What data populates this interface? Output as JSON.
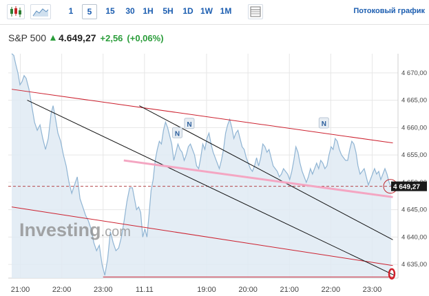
{
  "toolbar": {
    "timeframes": [
      "1",
      "5",
      "15",
      "30",
      "1H",
      "5H",
      "1D",
      "1W",
      "1M"
    ],
    "active_timeframe": "5",
    "streaming_label": "Потоковый график"
  },
  "quote": {
    "name": "S&P 500",
    "price": "4.649,27",
    "change": "+2,56",
    "change_pct": "(+0,06%)",
    "up_color": "#2a9d3a"
  },
  "chart_data": {
    "type": "area",
    "title": "",
    "xlabel": "",
    "ylabel": "",
    "ylim": [
      4632.5,
      4673.5
    ],
    "y_ticks": [
      4635,
      4640,
      4645,
      4650,
      4655,
      4660,
      4665,
      4670
    ],
    "y_tick_labels": [
      "4 635,00",
      "4 640,00",
      "4 645,00",
      "4 650,00",
      "4 655,00",
      "4 660,00",
      "4 665,00",
      "4 670,00"
    ],
    "x_ticks": [
      {
        "label": "21:00",
        "t": 2.5
      },
      {
        "label": "22:00",
        "t": 14.5
      },
      {
        "label": "23:00",
        "t": 26.5
      },
      {
        "label": "11.11",
        "t": 38.5
      },
      {
        "label": "19:00",
        "t": 56.5
      },
      {
        "label": "20:00",
        "t": 68.5
      },
      {
        "label": "21:00",
        "t": 80.5
      },
      {
        "label": "22:00",
        "t": 92.5
      },
      {
        "label": "23:00",
        "t": 104.5
      }
    ],
    "t_range": [
      -1,
      112
    ],
    "series": [
      {
        "values": [
          [
            0,
            4673.5
          ],
          [
            0.6,
            4673.2
          ],
          [
            1.2,
            4671.5
          ],
          [
            1.8,
            4670.0
          ],
          [
            2.4,
            4667.8
          ],
          [
            3.0,
            4668.4
          ],
          [
            3.6,
            4669.5
          ],
          [
            4.2,
            4669.0
          ],
          [
            5.0,
            4667.0
          ],
          [
            5.8,
            4664.0
          ],
          [
            6.6,
            4661.0
          ],
          [
            7.4,
            4659.5
          ],
          [
            8.2,
            4660.5
          ],
          [
            9.0,
            4658.0
          ],
          [
            9.8,
            4656.0
          ],
          [
            10.6,
            4658.0
          ],
          [
            11.4,
            4662.5
          ],
          [
            12.0,
            4664.0
          ],
          [
            12.6,
            4662.0
          ],
          [
            13.4,
            4659.0
          ],
          [
            14.2,
            4657.5
          ],
          [
            15.0,
            4655.0
          ],
          [
            15.8,
            4653.0
          ],
          [
            16.6,
            4650.0
          ],
          [
            17.4,
            4648.0
          ],
          [
            18.2,
            4649.5
          ],
          [
            19.0,
            4651.0
          ],
          [
            19.8,
            4647.0
          ],
          [
            20.6,
            4645.5
          ],
          [
            21.4,
            4644.0
          ],
          [
            22.2,
            4643.0
          ],
          [
            23.0,
            4641.5
          ],
          [
            23.8,
            4639.0
          ],
          [
            24.6,
            4637.5
          ],
          [
            25.4,
            4638.5
          ],
          [
            26.2,
            4635.0
          ],
          [
            27.0,
            4633.0
          ],
          [
            27.8,
            4636.0
          ],
          [
            28.6,
            4641.0
          ],
          [
            29.4,
            4639.0
          ],
          [
            30.2,
            4637.5
          ],
          [
            31.0,
            4638.0
          ],
          [
            31.8,
            4640.0
          ],
          [
            32.6,
            4643.0
          ],
          [
            33.4,
            4646.5
          ],
          [
            34.2,
            4649.0
          ],
          [
            35.0,
            4649.0
          ],
          [
            35.6,
            4647.0
          ],
          [
            36.2,
            4645.0
          ],
          [
            36.8,
            4645.5
          ],
          [
            37.4,
            4644.5
          ],
          [
            38.0,
            4640.0
          ],
          [
            38.6,
            4641.5
          ],
          [
            39.2,
            4640.0
          ],
          [
            39.8,
            4644.0
          ],
          [
            40.4,
            4648.5
          ],
          [
            41.0,
            4650.5
          ],
          [
            41.6,
            4654.0
          ],
          [
            42.2,
            4656.0
          ],
          [
            42.8,
            4657.5
          ],
          [
            43.4,
            4657.0
          ],
          [
            44.0,
            4659.5
          ],
          [
            44.6,
            4661.0
          ],
          [
            45.2,
            4660.0
          ],
          [
            45.8,
            4658.5
          ],
          [
            46.4,
            4657.0
          ],
          [
            47.0,
            4654.0
          ],
          [
            47.6,
            4655.5
          ],
          [
            48.2,
            4657.0
          ],
          [
            48.8,
            4656.0
          ],
          [
            49.4,
            4655.5
          ],
          [
            50.0,
            4654.0
          ],
          [
            50.6,
            4655.0
          ],
          [
            51.2,
            4656.5
          ],
          [
            51.8,
            4657.0
          ],
          [
            52.4,
            4656.0
          ],
          [
            53.0,
            4655.0
          ],
          [
            53.6,
            4653.0
          ],
          [
            54.2,
            4652.5
          ],
          [
            54.8,
            4654.5
          ],
          [
            55.4,
            4657.0
          ],
          [
            56.0,
            4656.0
          ],
          [
            56.6,
            4658.0
          ],
          [
            57.2,
            4659.0
          ],
          [
            57.8,
            4657.0
          ],
          [
            58.4,
            4655.5
          ],
          [
            59.0,
            4654.5
          ],
          [
            59.6,
            4653.5
          ],
          [
            60.2,
            4652.5
          ],
          [
            60.8,
            4654.0
          ],
          [
            61.4,
            4656.0
          ],
          [
            62.0,
            4659.0
          ],
          [
            62.6,
            4660.5
          ],
          [
            63.2,
            4661.5
          ],
          [
            63.8,
            4660.0
          ],
          [
            64.4,
            4658.0
          ],
          [
            65.0,
            4659.0
          ],
          [
            65.6,
            4659.5
          ],
          [
            66.2,
            4658.0
          ],
          [
            66.8,
            4656.5
          ],
          [
            67.4,
            4656.0
          ],
          [
            68.0,
            4654.5
          ],
          [
            68.6,
            4653.5
          ],
          [
            69.2,
            4652.5
          ],
          [
            69.8,
            4652.0
          ],
          [
            70.4,
            4653.0
          ],
          [
            71.0,
            4654.5
          ],
          [
            71.6,
            4653.0
          ],
          [
            72.2,
            4654.5
          ],
          [
            72.8,
            4657.0
          ],
          [
            73.4,
            4656.5
          ],
          [
            74.0,
            4655.5
          ],
          [
            74.6,
            4656.0
          ],
          [
            75.2,
            4654.5
          ],
          [
            75.8,
            4653.0
          ],
          [
            76.4,
            4652.5
          ],
          [
            77.0,
            4652.0
          ],
          [
            77.6,
            4651.0
          ],
          [
            78.2,
            4651.5
          ],
          [
            78.8,
            4652.5
          ],
          [
            79.4,
            4652.0
          ],
          [
            80.0,
            4651.5
          ],
          [
            80.6,
            4650.5
          ],
          [
            81.2,
            4652.0
          ],
          [
            81.8,
            4654.0
          ],
          [
            82.4,
            4656.5
          ],
          [
            83.0,
            4655.5
          ],
          [
            83.6,
            4653.5
          ],
          [
            84.2,
            4652.0
          ],
          [
            84.8,
            4651.0
          ],
          [
            85.4,
            4650.0
          ],
          [
            86.0,
            4651.0
          ],
          [
            86.6,
            4652.5
          ],
          [
            87.2,
            4651.5
          ],
          [
            87.8,
            4652.5
          ],
          [
            88.4,
            4653.5
          ],
          [
            89.0,
            4652.5
          ],
          [
            89.6,
            4654.0
          ],
          [
            90.2,
            4653.5
          ],
          [
            90.8,
            4652.5
          ],
          [
            91.4,
            4653.0
          ],
          [
            92.0,
            4655.0
          ],
          [
            92.6,
            4656.5
          ],
          [
            93.2,
            4656.0
          ],
          [
            93.8,
            4658.0
          ],
          [
            94.4,
            4657.5
          ],
          [
            95.0,
            4656.0
          ],
          [
            95.6,
            4655.0
          ],
          [
            96.2,
            4654.5
          ],
          [
            96.8,
            4654.0
          ],
          [
            97.4,
            4654.0
          ],
          [
            98.0,
            4656.0
          ],
          [
            98.6,
            4657.5
          ],
          [
            99.2,
            4657.0
          ],
          [
            99.8,
            4655.5
          ],
          [
            100.4,
            4653.0
          ],
          [
            101.0,
            4651.5
          ],
          [
            101.6,
            4652.0
          ],
          [
            102.2,
            4652.5
          ],
          [
            102.8,
            4651.0
          ],
          [
            103.4,
            4649.5
          ],
          [
            104.0,
            4650.5
          ],
          [
            104.6,
            4651.5
          ],
          [
            105.2,
            4652.5
          ],
          [
            105.8,
            4651.5
          ],
          [
            106.4,
            4652.0
          ],
          [
            107.0,
            4650.5
          ],
          [
            107.6,
            4651.5
          ],
          [
            108.2,
            4652.5
          ],
          [
            108.8,
            4651.5
          ],
          [
            109.4,
            4650.0
          ],
          [
            110.0,
            4649.27
          ]
        ]
      }
    ],
    "last_value": 4649.27,
    "last_value_label": "4 649,27",
    "trendlines": [
      {
        "kind": "channel",
        "color": "#cc1f2d",
        "from": [
          0,
          4667.0
        ],
        "to": [
          110.5,
          4657.2
        ]
      },
      {
        "kind": "channel",
        "color": "#cc1f2d",
        "from": [
          0,
          4645.5
        ],
        "to": [
          110.5,
          4634.8
        ]
      },
      {
        "kind": "horizontal",
        "color": "#cc1f2d",
        "from": [
          26.5,
          4632.7
        ],
        "to": [
          110.5,
          4632.7
        ]
      },
      {
        "kind": "diagonal",
        "color": "#111111",
        "from": [
          4.5,
          4665.0
        ],
        "to": [
          111.0,
          4633.0
        ]
      },
      {
        "kind": "diagonal",
        "color": "#111111",
        "from": [
          37.0,
          4664.0
        ],
        "to": [
          110.5,
          4639.5
        ]
      },
      {
        "kind": "regression",
        "color": "#f4a6c2",
        "from": [
          32.5,
          4654.0
        ],
        "to": [
          110.5,
          4647.3
        ]
      }
    ],
    "news_markers": [
      {
        "label": "N",
        "t": 48.0,
        "y": 4659.0
      },
      {
        "label": "N",
        "t": 51.5,
        "y": 4660.7
      },
      {
        "label": "N",
        "t": 90.5,
        "y": 4660.8
      }
    ],
    "alert_marker": {
      "t": 109.8,
      "y": 4649.27
    },
    "end_marker": {
      "t": 110.2,
      "y": 4632.9
    },
    "watermark": "Investing.com",
    "colors": {
      "area_fill": "#dfeaf3",
      "area_line": "#8fb4d3",
      "grid": "#e6e6e6",
      "last_price_line": "#b3464a",
      "price_tag_bg": "#1a1a1a"
    },
    "grid": true,
    "legend": "none"
  }
}
